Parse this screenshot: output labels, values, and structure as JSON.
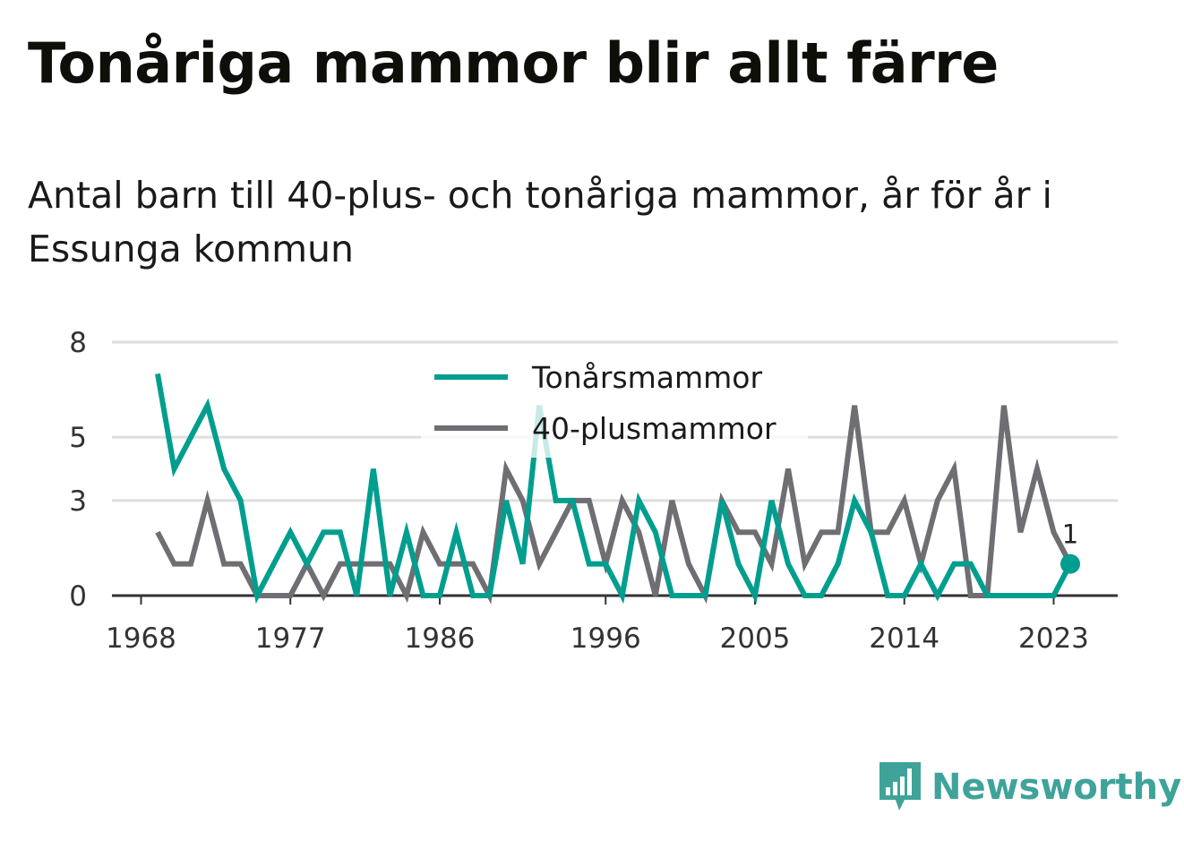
{
  "title": "Tonåriga mammor blir allt färre",
  "subtitle": "Antal barn till 40-plus- och tonåriga mammor, år för år i Essunga kommun",
  "brand": {
    "name": "Newsworthy",
    "icon": "newsworthy-logo-icon"
  },
  "colors": {
    "teen": "#009e8e",
    "forty": "#6e6e73",
    "grid": "#dedede",
    "axis": "#333333",
    "brand": "#3fa39a"
  },
  "chart_data": {
    "type": "line",
    "x": [
      1969,
      1970,
      1971,
      1972,
      1973,
      1974,
      1975,
      1976,
      1977,
      1978,
      1979,
      1980,
      1981,
      1982,
      1983,
      1984,
      1985,
      1986,
      1987,
      1988,
      1989,
      1990,
      1991,
      1992,
      1993,
      1994,
      1995,
      1996,
      1997,
      1998,
      1999,
      2000,
      2001,
      2002,
      2003,
      2004,
      2005,
      2006,
      2007,
      2008,
      2009,
      2010,
      2011,
      2012,
      2013,
      2014,
      2015,
      2016,
      2017,
      2018,
      2019,
      2020,
      2021,
      2022,
      2023,
      2024
    ],
    "series": [
      {
        "name": "Tonårsmammor",
        "values": [
          7,
          4,
          5,
          6,
          4,
          3,
          0,
          1,
          2,
          1,
          2,
          2,
          0,
          4,
          0,
          2,
          0,
          0,
          2,
          0,
          0,
          3,
          1,
          6,
          3,
          3,
          1,
          1,
          0,
          3,
          2,
          0,
          0,
          0,
          3,
          1,
          0,
          3,
          1,
          0,
          0,
          1,
          3,
          2,
          0,
          0,
          1,
          0,
          1,
          1,
          0,
          0,
          0,
          0,
          0,
          1
        ]
      },
      {
        "name": "40-plusmammor",
        "values": [
          2,
          1,
          1,
          3,
          1,
          1,
          0,
          0,
          0,
          1,
          0,
          1,
          1,
          1,
          1,
          0,
          2,
          1,
          1,
          1,
          0,
          4,
          3,
          1,
          2,
          3,
          3,
          1,
          3,
          2,
          0,
          3,
          1,
          0,
          3,
          2,
          2,
          1,
          4,
          1,
          2,
          2,
          6,
          2,
          2,
          3,
          1,
          3,
          4,
          0,
          0,
          6,
          2,
          4,
          2,
          1
        ]
      }
    ],
    "xticks": [
      "1968",
      "1977",
      "1986",
      "1996",
      "2005",
      "2014",
      "2023"
    ],
    "yticks": [
      "0",
      "3",
      "5",
      "8"
    ],
    "ylim": [
      0,
      8
    ],
    "grid": true,
    "legend": "top-center",
    "end_label": "1"
  }
}
